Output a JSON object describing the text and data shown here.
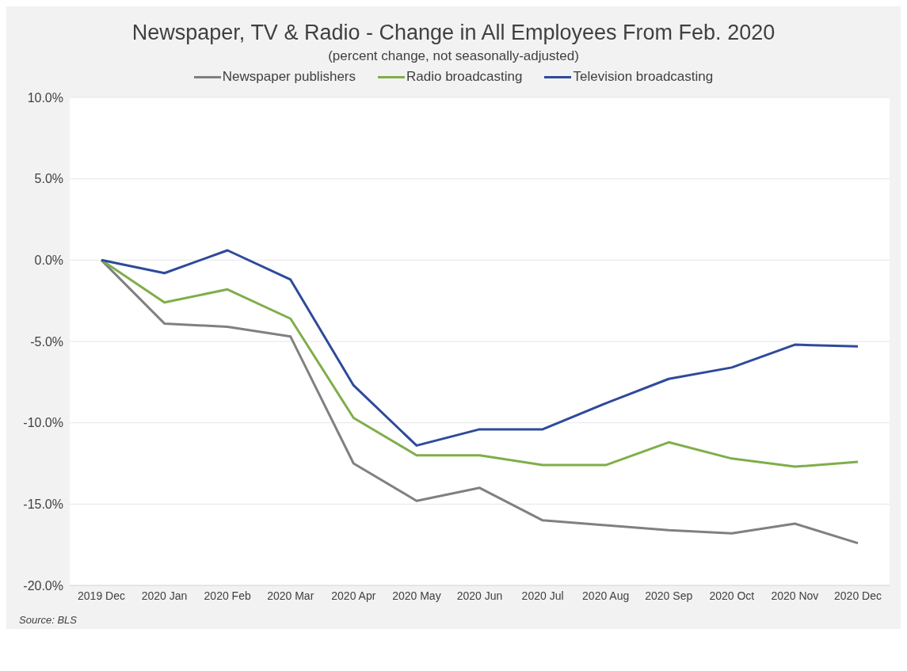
{
  "chart_data": {
    "type": "line",
    "title": "Newspaper, TV & Radio - Change in All Employees From Feb. 2020",
    "subtitle": "(percent change, not seasonally-adjusted)",
    "categories": [
      "2019 Dec",
      "2020 Jan",
      "2020 Feb",
      "2020 Mar",
      "2020 Apr",
      "2020 May",
      "2020 Jun",
      "2020 Jul",
      "2020 Aug",
      "2020 Sep",
      "2020 Oct",
      "2020 Nov",
      "2020 Dec"
    ],
    "series": [
      {
        "name": "Newspaper publishers",
        "color": "#808080",
        "values": [
          0,
          -3.9,
          -4.1,
          -4.7,
          -12.5,
          -14.8,
          -14.0,
          -16.0,
          -16.3,
          -16.6,
          -16.8,
          -16.2,
          -17.4
        ]
      },
      {
        "name": "Radio broadcasting",
        "color": "#7fae4a",
        "values": [
          0,
          -2.6,
          -1.8,
          -3.6,
          -9.7,
          -12.0,
          -12.0,
          -12.6,
          -12.6,
          -11.2,
          -12.2,
          -12.7,
          -12.4
        ]
      },
      {
        "name": "Television broadcasting",
        "color": "#2e4a9a",
        "values": [
          0,
          -0.8,
          0.6,
          -1.2,
          -7.7,
          -11.4,
          -10.4,
          -10.4,
          -8.8,
          -7.3,
          -6.6,
          -5.2,
          -5.3
        ]
      }
    ],
    "ylim": [
      -20,
      10
    ],
    "yticks": [
      {
        "value": -20,
        "label": "-20.0%"
      },
      {
        "value": -15,
        "label": "-15.0%"
      },
      {
        "value": -10,
        "label": "-10.0%"
      },
      {
        "value": -5,
        "label": "-5.0%"
      },
      {
        "value": 0,
        "label": "0.0%"
      },
      {
        "value": 5,
        "label": "5.0%"
      },
      {
        "value": 10,
        "label": "10.0%"
      }
    ],
    "grid": "y",
    "legend": "top",
    "marker": "none",
    "line_style": "solid",
    "annotations": [
      "Source: BLS"
    ]
  }
}
